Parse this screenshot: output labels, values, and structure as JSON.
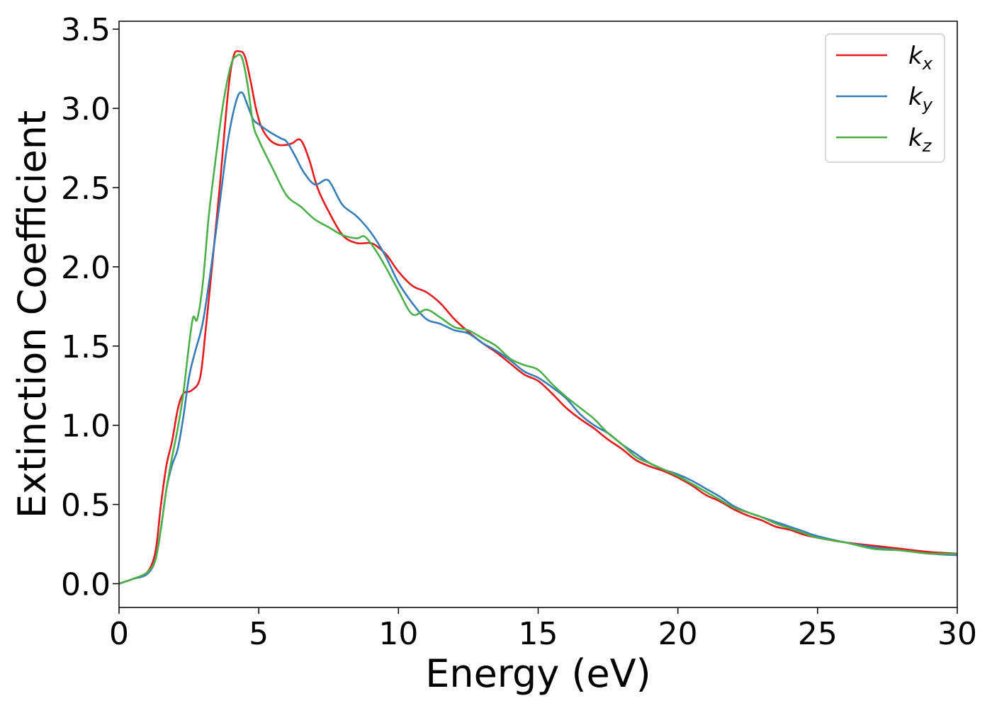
{
  "chart_data": {
    "type": "line",
    "title": "",
    "xlabel": "Energy (eV)",
    "ylabel": "Extinction Coefficient",
    "xlim": [
      0,
      30
    ],
    "ylim": [
      -0.15,
      3.55
    ],
    "xticks": [
      0,
      5,
      10,
      15,
      20,
      25,
      30
    ],
    "yticks": [
      0.0,
      0.5,
      1.0,
      1.5,
      2.0,
      2.5,
      3.0,
      3.5
    ],
    "xtick_labels": [
      "0",
      "5",
      "10",
      "15",
      "20",
      "25",
      "30"
    ],
    "ytick_labels": [
      "0.0",
      "0.5",
      "1.0",
      "1.5",
      "2.0",
      "2.5",
      "3.0",
      "3.5"
    ],
    "grid": false,
    "legend_position": "top-right",
    "series": [
      {
        "name": "k",
        "subscript": "x",
        "color": "#e41a1c",
        "x": [
          0,
          0.5,
          1,
          1.3,
          1.5,
          1.7,
          1.9,
          2.1,
          2.3,
          2.6,
          2.9,
          3.1,
          3.3,
          3.6,
          3.9,
          4.1,
          4.3,
          4.5,
          4.7,
          4.9,
          5.1,
          5.4,
          5.7,
          6.0,
          6.2,
          6.5,
          6.8,
          7.1,
          7.5,
          8.0,
          8.5,
          9.0,
          9.3,
          9.6,
          10.0,
          10.5,
          11.0,
          11.5,
          12.0,
          12.5,
          13.0,
          13.5,
          14.0,
          14.5,
          15.0,
          15.5,
          16.0,
          16.5,
          17.0,
          17.5,
          18.0,
          18.5,
          19.0,
          19.5,
          20.0,
          20.5,
          21.0,
          21.5,
          22.0,
          22.5,
          23.0,
          23.5,
          24.0,
          24.5,
          25.0,
          26.0,
          27.0,
          28.0,
          29.0,
          30.0
        ],
        "values": [
          0,
          0.03,
          0.07,
          0.2,
          0.5,
          0.75,
          0.9,
          1.1,
          1.2,
          1.22,
          1.3,
          1.6,
          1.95,
          2.5,
          3.1,
          3.33,
          3.36,
          3.33,
          3.18,
          3.0,
          2.88,
          2.8,
          2.77,
          2.77,
          2.78,
          2.8,
          2.68,
          2.5,
          2.35,
          2.2,
          2.15,
          2.15,
          2.12,
          2.07,
          1.97,
          1.88,
          1.84,
          1.77,
          1.67,
          1.59,
          1.52,
          1.46,
          1.39,
          1.32,
          1.28,
          1.2,
          1.11,
          1.04,
          0.98,
          0.91,
          0.85,
          0.78,
          0.74,
          0.71,
          0.67,
          0.62,
          0.56,
          0.52,
          0.47,
          0.43,
          0.4,
          0.36,
          0.34,
          0.31,
          0.29,
          0.26,
          0.24,
          0.22,
          0.2,
          0.19
        ]
      },
      {
        "name": "k",
        "subscript": "y",
        "color": "#377eb8",
        "x": [
          0,
          0.5,
          1,
          1.3,
          1.5,
          1.7,
          1.9,
          2.1,
          2.3,
          2.5,
          2.7,
          3.0,
          3.3,
          3.6,
          3.9,
          4.2,
          4.4,
          4.6,
          4.8,
          5.0,
          5.4,
          5.8,
          6.0,
          6.3,
          6.6,
          7.0,
          7.4,
          7.6,
          8.0,
          8.5,
          9.0,
          9.5,
          10.0,
          10.5,
          11.0,
          11.5,
          12.0,
          12.5,
          13.0,
          13.5,
          14.0,
          14.5,
          15.0,
          15.5,
          16.0,
          16.5,
          17.0,
          17.5,
          18.0,
          18.5,
          19.0,
          19.5,
          20.0,
          20.5,
          21.0,
          21.5,
          22.0,
          22.5,
          23.0,
          23.5,
          24.0,
          24.5,
          25.0,
          26.0,
          27.0,
          28.0,
          29.0,
          30.0
        ],
        "values": [
          0,
          0.03,
          0.06,
          0.15,
          0.35,
          0.6,
          0.75,
          0.85,
          1.05,
          1.3,
          1.45,
          1.65,
          2.0,
          2.4,
          2.8,
          3.05,
          3.1,
          3.02,
          2.93,
          2.9,
          2.85,
          2.81,
          2.79,
          2.7,
          2.6,
          2.52,
          2.55,
          2.52,
          2.39,
          2.32,
          2.22,
          2.08,
          1.9,
          1.77,
          1.67,
          1.64,
          1.6,
          1.58,
          1.52,
          1.47,
          1.41,
          1.34,
          1.3,
          1.24,
          1.17,
          1.07,
          1.0,
          0.95,
          0.88,
          0.82,
          0.76,
          0.72,
          0.69,
          0.65,
          0.6,
          0.55,
          0.49,
          0.45,
          0.42,
          0.39,
          0.36,
          0.33,
          0.3,
          0.26,
          0.23,
          0.21,
          0.19,
          0.18
        ]
      },
      {
        "name": "k",
        "subscript": "z",
        "color": "#4daf4a",
        "x": [
          0,
          0.5,
          1,
          1.3,
          1.5,
          1.7,
          1.9,
          2.1,
          2.3,
          2.5,
          2.65,
          2.8,
          3.0,
          3.2,
          3.4,
          3.7,
          4.0,
          4.2,
          4.4,
          4.6,
          4.8,
          5.0,
          5.5,
          6.0,
          6.5,
          7.0,
          7.5,
          8.0,
          8.5,
          8.8,
          9.2,
          9.6,
          10.0,
          10.5,
          11.0,
          11.5,
          12.0,
          12.5,
          13.0,
          13.5,
          14.0,
          14.5,
          15.0,
          15.5,
          16.0,
          16.5,
          17.0,
          17.5,
          18.0,
          18.5,
          19.0,
          19.5,
          20.0,
          20.5,
          21.0,
          21.5,
          22.0,
          22.5,
          23.0,
          23.5,
          24.0,
          24.5,
          25.0,
          26.0,
          27.0,
          28.0,
          29.0,
          30.0
        ],
        "values": [
          0,
          0.03,
          0.07,
          0.15,
          0.35,
          0.6,
          0.8,
          0.98,
          1.2,
          1.5,
          1.68,
          1.67,
          1.9,
          2.3,
          2.6,
          3.0,
          3.27,
          3.33,
          3.32,
          3.15,
          2.9,
          2.8,
          2.62,
          2.45,
          2.38,
          2.3,
          2.25,
          2.2,
          2.18,
          2.19,
          2.1,
          1.98,
          1.85,
          1.7,
          1.73,
          1.68,
          1.62,
          1.6,
          1.55,
          1.5,
          1.42,
          1.38,
          1.35,
          1.26,
          1.18,
          1.11,
          1.04,
          0.95,
          0.88,
          0.8,
          0.76,
          0.72,
          0.68,
          0.63,
          0.58,
          0.53,
          0.48,
          0.45,
          0.42,
          0.38,
          0.35,
          0.32,
          0.29,
          0.26,
          0.22,
          0.21,
          0.19,
          0.19
        ]
      }
    ]
  }
}
